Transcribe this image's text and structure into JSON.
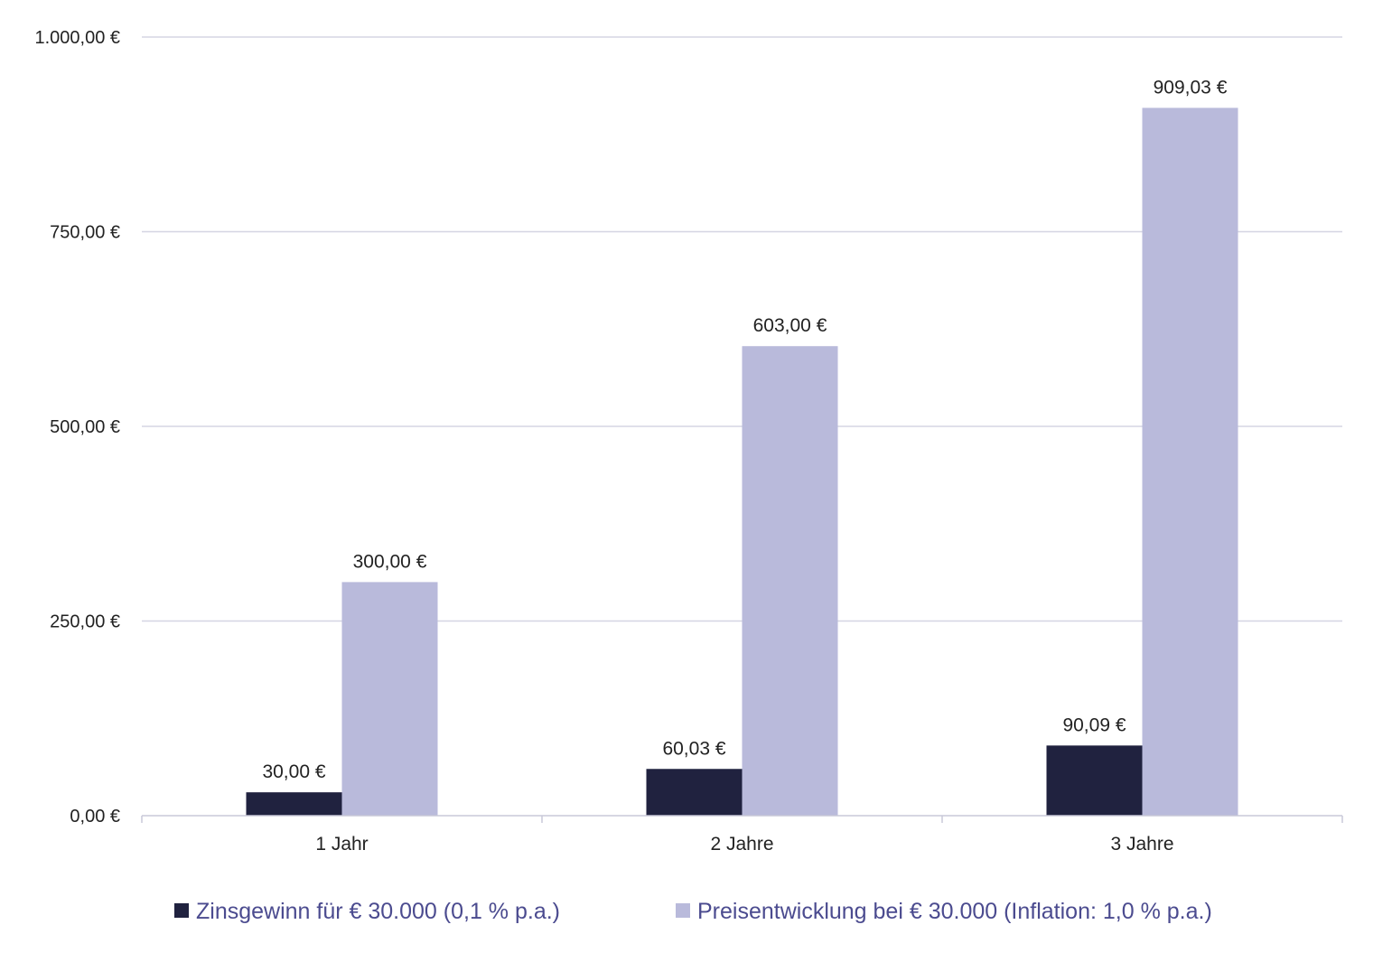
{
  "chart_data": {
    "type": "bar",
    "title": "",
    "xlabel": "",
    "ylabel": "",
    "categories": [
      "1 Jahr",
      "2 Jahre",
      "3 Jahre"
    ],
    "series": [
      {
        "name": "Zinsgewinn für € 30.000 (0,1 % p.a.)",
        "color": "#20223f",
        "values": [
          30.0,
          60.03,
          90.09
        ],
        "labels": [
          "30,00 €",
          "60,03 €",
          "90,09 €"
        ]
      },
      {
        "name": "Preisentwicklung bei € 30.000 (Inflation: 1,0 % p.a.)",
        "color": "#b9badb",
        "values": [
          300.0,
          603.0,
          909.03
        ],
        "labels": [
          "300,00 €",
          "603,00 €",
          "909,03 €"
        ]
      }
    ],
    "ylim": [
      0,
      1000
    ],
    "yticks": [
      0,
      250,
      500,
      750,
      1000
    ],
    "ytick_labels": [
      "0,00 €",
      "250,00 €",
      "500,00 €",
      "750,00 €",
      "1.000,00 €"
    ],
    "grid": true,
    "legend_position": "bottom"
  }
}
